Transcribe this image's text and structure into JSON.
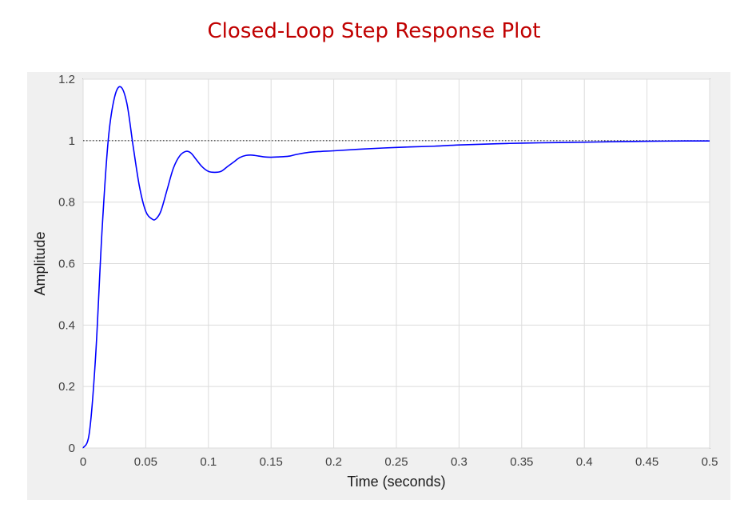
{
  "page_title": "Closed-Loop Step Response Plot",
  "chart_data": {
    "type": "line",
    "title": "",
    "xlabel": "Time (seconds)",
    "ylabel": "Amplitude",
    "xlim": [
      0,
      0.5
    ],
    "ylim": [
      0,
      1.2
    ],
    "xticks": [
      "0",
      "0.05",
      "0.1",
      "0.15",
      "0.2",
      "0.25",
      "0.3",
      "0.35",
      "0.4",
      "0.45",
      "0.5"
    ],
    "yticks": [
      "0",
      "0.2",
      "0.4",
      "0.6",
      "0.8",
      "1",
      "1.2"
    ],
    "grid": true,
    "reference_line": {
      "y": 1,
      "style": "dotted"
    },
    "series": [
      {
        "color": "#0000ff",
        "x": [
          0,
          0.005,
          0.01,
          0.015,
          0.02,
          0.025,
          0.03,
          0.035,
          0.04,
          0.045,
          0.05,
          0.055,
          0.058,
          0.062,
          0.067,
          0.072,
          0.077,
          0.082,
          0.086,
          0.09,
          0.095,
          0.1,
          0.105,
          0.11,
          0.115,
          0.12,
          0.125,
          0.13,
          0.135,
          0.14,
          0.145,
          0.15,
          0.155,
          0.16,
          0.165,
          0.17,
          0.18,
          0.19,
          0.2,
          0.22,
          0.25,
          0.28,
          0.3,
          0.33,
          0.35,
          0.38,
          0.4,
          0.43,
          0.45,
          0.48,
          0.5
        ],
        "y": [
          0,
          0.05,
          0.3,
          0.7,
          1.0,
          1.14,
          1.175,
          1.12,
          0.98,
          0.85,
          0.77,
          0.745,
          0.745,
          0.77,
          0.84,
          0.91,
          0.95,
          0.965,
          0.96,
          0.94,
          0.915,
          0.9,
          0.897,
          0.9,
          0.915,
          0.93,
          0.945,
          0.952,
          0.953,
          0.95,
          0.947,
          0.946,
          0.947,
          0.948,
          0.95,
          0.955,
          0.962,
          0.965,
          0.967,
          0.972,
          0.978,
          0.982,
          0.986,
          0.99,
          0.992,
          0.994,
          0.995,
          0.997,
          0.998,
          0.999,
          0.999
        ]
      }
    ]
  }
}
